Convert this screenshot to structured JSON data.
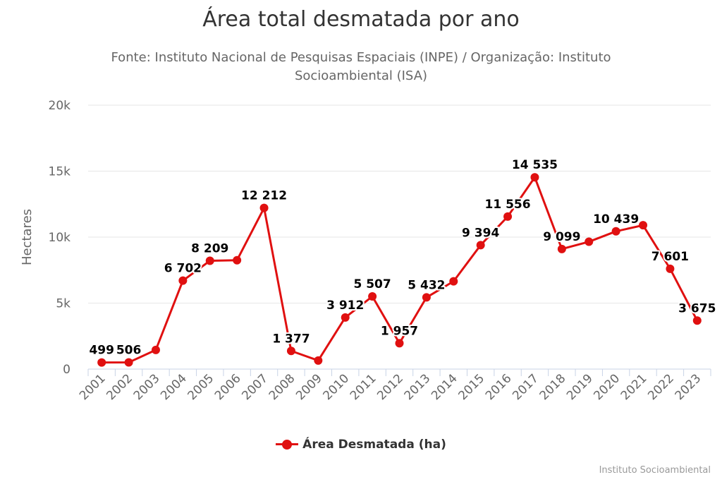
{
  "chart_data": {
    "type": "line",
    "title": "Área total desmatada por ano",
    "subtitle": "Fonte: Instituto Nacional de Pesquisas Espaciais (INPE) / Organização: Instituto Socioambiental (ISA)",
    "ylabel": "Hectares",
    "xlabel": "",
    "ylim": [
      0,
      20000
    ],
    "yticks": [
      0,
      5000,
      10000,
      15000,
      20000
    ],
    "ytick_labels": [
      "0",
      "5k",
      "10k",
      "15k",
      "20k"
    ],
    "categories": [
      "2001",
      "2002",
      "2003",
      "2004",
      "2005",
      "2006",
      "2007",
      "2008",
      "2009",
      "2010",
      "2011",
      "2012",
      "2013",
      "2014",
      "2015",
      "2016",
      "2017",
      "2018",
      "2019",
      "2020",
      "2021",
      "2022",
      "2023"
    ],
    "series": [
      {
        "name": "Área Desmatada (ha)",
        "color": "#e01010",
        "values": [
          499,
          506,
          1450,
          6702,
          8209,
          8250,
          12212,
          1377,
          650,
          3912,
          5507,
          1957,
          5432,
          6650,
          9394,
          11556,
          14535,
          9099,
          9650,
          10439,
          10900,
          7601,
          3675
        ],
        "data_labels": [
          "499",
          "506",
          "",
          "6 702",
          "8 209",
          "",
          "12 212",
          "1 377",
          "",
          "3 912",
          "5 507",
          "1 957",
          "5 432",
          "",
          "9 394",
          "11 556",
          "14 535",
          "9 099",
          "",
          "10 439",
          "",
          "7 601",
          "3 675"
        ]
      }
    ],
    "grid": true,
    "legend_position": "bottom-center"
  },
  "credits": "Instituto Socioambiental"
}
